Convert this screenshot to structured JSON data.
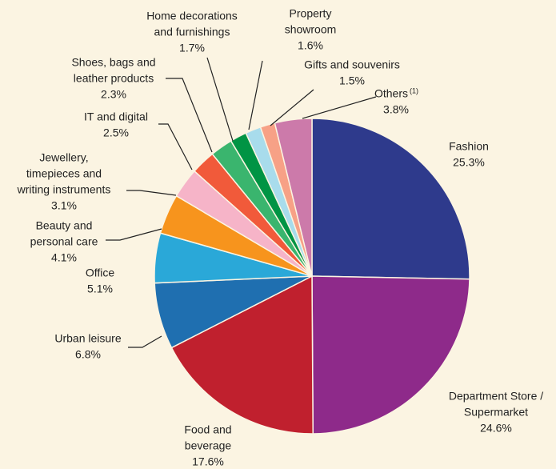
{
  "chart_data": {
    "type": "pie",
    "categories": [
      [
        "Fashion"
      ],
      [
        "Department Store /",
        "Supermarket"
      ],
      [
        "Food and",
        "beverage"
      ],
      [
        "Urban leisure"
      ],
      [
        "Office"
      ],
      [
        "Beauty and",
        "personal care"
      ],
      [
        "Jewellery,",
        "timepieces and",
        "writing instruments"
      ],
      [
        "IT and digital"
      ],
      [
        "Shoes, bags and",
        "leather products"
      ],
      [
        "Home decorations",
        "and furnishings"
      ],
      [
        "Property",
        "showroom"
      ],
      [
        "Gifts and souvenirs"
      ],
      [
        "Others"
      ]
    ],
    "notes": {
      "12": "(1)"
    },
    "values": [
      25.3,
      24.6,
      17.6,
      6.8,
      5.1,
      4.1,
      3.1,
      2.5,
      2.3,
      1.7,
      1.6,
      1.5,
      3.8
    ],
    "value_labels": [
      "25.3%",
      "24.6%",
      "17.6%",
      "6.8%",
      "5.1%",
      "4.1%",
      "3.1%",
      "2.5%",
      "2.3%",
      "1.7%",
      "1.6%",
      "1.5%",
      "3.8%"
    ],
    "colors": [
      "#2e3a8c",
      "#8e2a8a",
      "#c0202e",
      "#1f6fb0",
      "#2aa8d8",
      "#f7941d",
      "#f6b4c8",
      "#f15a3a",
      "#3ab56e",
      "#009444",
      "#a8dcec",
      "#f7a186",
      "#cc7aaa"
    ]
  }
}
